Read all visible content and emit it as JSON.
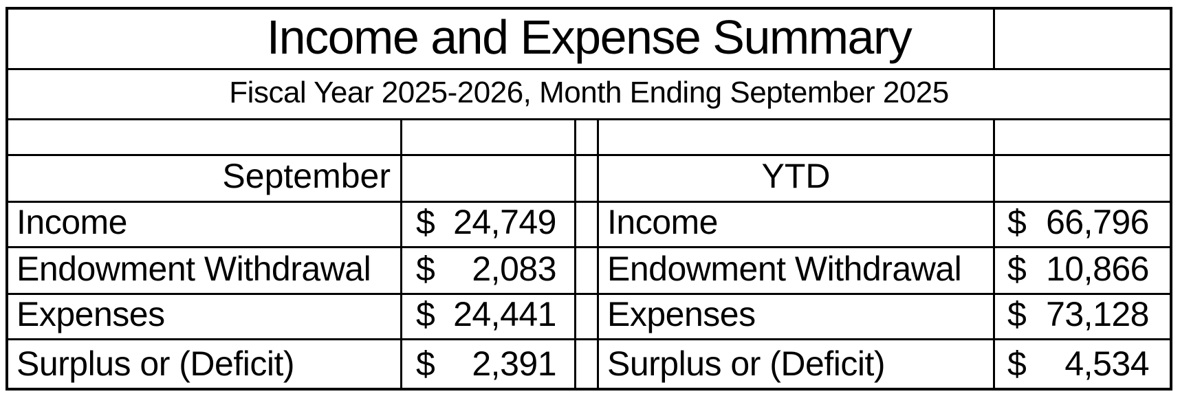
{
  "title": "Income and Expense Summary",
  "subtitle": "Fiscal Year 2025-2026, Month Ending September 2025",
  "currency_symbol": "$",
  "colors": {
    "background": "#ffffff",
    "text": "#000000",
    "border": "#000000"
  },
  "sections": {
    "month": {
      "header": "September",
      "rows": [
        {
          "label": "Income",
          "value": "24,749"
        },
        {
          "label": "Endowment Withdrawal",
          "value": "2,083"
        },
        {
          "label": "Expenses",
          "value": "24,441"
        },
        {
          "label": "Surplus or (Deficit)",
          "value": "2,391"
        }
      ]
    },
    "ytd": {
      "header": "YTD",
      "rows": [
        {
          "label": "Income",
          "value": "66,796"
        },
        {
          "label": "Endowment Withdrawal",
          "value": "10,866"
        },
        {
          "label": "Expenses",
          "value": "73,128"
        },
        {
          "label": "Surplus or (Deficit)",
          "value": "4,534"
        }
      ]
    }
  }
}
